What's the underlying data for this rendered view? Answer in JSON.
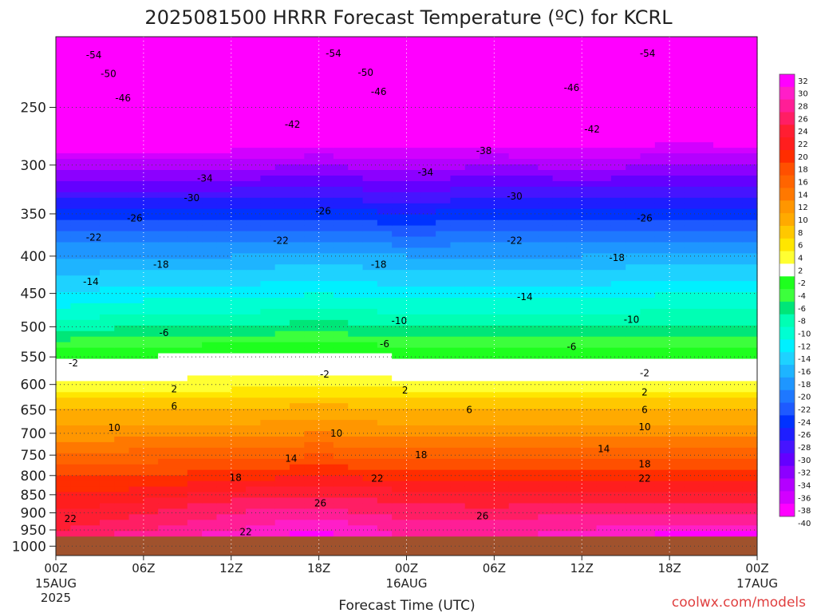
{
  "chart_data": {
    "type": "heatmap",
    "title": "2025081500 HRRR Forecast Temperature (ºC) for KCRL",
    "xlabel": "Forecast Time (UTC)",
    "ylabel": "",
    "credit": "coolwx.com/models",
    "x_ticks": [
      {
        "hours": 0,
        "label": "00Z",
        "sub": "15AUG",
        "sub2": "2025"
      },
      {
        "hours": 6,
        "label": "06Z"
      },
      {
        "hours": 12,
        "label": "12Z"
      },
      {
        "hours": 18,
        "label": "18Z"
      },
      {
        "hours": 24,
        "label": "00Z",
        "sub": "16AUG"
      },
      {
        "hours": 30,
        "label": "06Z"
      },
      {
        "hours": 36,
        "label": "12Z"
      },
      {
        "hours": 42,
        "label": "18Z"
      },
      {
        "hours": 48,
        "label": "00Z",
        "sub": "17AUG"
      }
    ],
    "x_range_hours": [
      0,
      48
    ],
    "y_ticks": [
      250,
      300,
      350,
      400,
      450,
      500,
      550,
      600,
      650,
      700,
      750,
      800,
      850,
      900,
      950,
      1000
    ],
    "y_range_hpa": [
      200,
      1030
    ],
    "y_scale": "log",
    "surface_pressure_hpa": 970,
    "grid": true,
    "colorbar": {
      "labels": [
        32,
        30,
        28,
        26,
        24,
        22,
        20,
        18,
        16,
        14,
        12,
        10,
        8,
        6,
        4,
        2,
        -2,
        -4,
        -6,
        -8,
        -10,
        -12,
        -14,
        -16,
        -18,
        -20,
        -22,
        -24,
        -26,
        -28,
        -30,
        -32,
        -34,
        -36,
        -38,
        -40
      ],
      "colors": [
        "#ff00ff",
        "#ff1ec8",
        "#ff1e96",
        "#ff1e64",
        "#ff1e32",
        "#ff1e1e",
        "#ff2d00",
        "#ff5000",
        "#ff6400",
        "#ff7800",
        "#ff9600",
        "#ffaa00",
        "#ffc800",
        "#ffe600",
        "#ffff32",
        "#ffffff",
        "#1eff1e",
        "#3cff3c",
        "#00e678",
        "#00ffb4",
        "#00ffd2",
        "#00f0ff",
        "#1ed2ff",
        "#1eb4ff",
        "#1e96ff",
        "#1e78ff",
        "#1e5aff",
        "#0032ff",
        "#1e1eff",
        "#4614ff",
        "#6400ff",
        "#8c00ff",
        "#b400ff",
        "#d200ff",
        "#ff00ff"
      ]
    },
    "levels": [
      {
        "p": 200,
        "values": [
          -56,
          -56,
          -56,
          -56,
          -56,
          -56,
          -56,
          -56,
          -56
        ]
      },
      {
        "p": 250,
        "values": [
          -47,
          -47,
          -47,
          -46,
          -47,
          -46,
          -46,
          -45,
          -46
        ]
      },
      {
        "p": 300,
        "values": [
          -35,
          -35,
          -35,
          -34,
          -35,
          -34,
          -35,
          -34,
          -34
        ]
      },
      {
        "p": 350,
        "values": [
          -25,
          -25,
          -25,
          -25,
          -26,
          -25,
          -25,
          -25,
          -25
        ]
      },
      {
        "p": 400,
        "values": [
          -18,
          -18,
          -18,
          -17,
          -18,
          -18,
          -18,
          -17,
          -17
        ]
      },
      {
        "p": 450,
        "values": [
          -14,
          -13,
          -13,
          -12,
          -13,
          -13,
          -13,
          -12,
          -12
        ]
      },
      {
        "p": 500,
        "values": [
          -9,
          -8,
          -8,
          -7,
          -8,
          -8,
          -8,
          -8,
          -8
        ]
      },
      {
        "p": 550,
        "values": [
          -2,
          -2,
          -1,
          -1,
          -2,
          -2,
          -2,
          -2,
          -2
        ]
      },
      {
        "p": 600,
        "values": [
          3,
          3,
          3,
          4,
          3,
          3,
          3,
          3,
          3
        ]
      },
      {
        "p": 650,
        "values": [
          8,
          8,
          8,
          9,
          8,
          8,
          8,
          8,
          8
        ]
      },
      {
        "p": 700,
        "values": [
          11,
          11,
          11,
          12,
          11,
          11,
          11,
          11,
          11
        ]
      },
      {
        "p": 750,
        "values": [
          14,
          15,
          15,
          16,
          15,
          15,
          15,
          15,
          15
        ]
      },
      {
        "p": 800,
        "values": [
          18,
          18,
          19,
          20,
          19,
          19,
          19,
          19,
          19
        ]
      },
      {
        "p": 850,
        "values": [
          20,
          21,
          23,
          24,
          23,
          22,
          23,
          23,
          23
        ]
      },
      {
        "p": 900,
        "values": [
          22,
          24,
          26,
          27,
          25,
          25,
          26,
          26,
          26
        ]
      },
      {
        "p": 950,
        "values": [
          24,
          26,
          28,
          30,
          27,
          27,
          28,
          29,
          29
        ]
      },
      {
        "p": 970,
        "values": [
          25,
          27,
          29,
          31,
          28,
          28,
          29,
          31,
          31
        ]
      }
    ],
    "contour_labels": [
      {
        "text": "-54",
        "hours": 2.6,
        "p": 212
      },
      {
        "text": "-54",
        "hours": 19.0,
        "p": 211
      },
      {
        "text": "-54",
        "hours": 40.5,
        "p": 211
      },
      {
        "text": "-50",
        "hours": 3.6,
        "p": 225
      },
      {
        "text": "-50",
        "hours": 21.2,
        "p": 224
      },
      {
        "text": "-46",
        "hours": 4.6,
        "p": 243
      },
      {
        "text": "-46",
        "hours": 22.1,
        "p": 238
      },
      {
        "text": "-46",
        "hours": 35.3,
        "p": 235
      },
      {
        "text": "-42",
        "hours": 16.2,
        "p": 264
      },
      {
        "text": "-42",
        "hours": 36.7,
        "p": 268
      },
      {
        "text": "-38",
        "hours": 29.3,
        "p": 287
      },
      {
        "text": "-34",
        "hours": 10.2,
        "p": 313
      },
      {
        "text": "-34",
        "hours": 25.3,
        "p": 307
      },
      {
        "text": "-30",
        "hours": 9.3,
        "p": 333
      },
      {
        "text": "-30",
        "hours": 31.4,
        "p": 331
      },
      {
        "text": "-26",
        "hours": 5.4,
        "p": 355
      },
      {
        "text": "-26",
        "hours": 18.3,
        "p": 347
      },
      {
        "text": "-26",
        "hours": 40.3,
        "p": 355
      },
      {
        "text": "-22",
        "hours": 2.6,
        "p": 377
      },
      {
        "text": "-22",
        "hours": 15.4,
        "p": 381
      },
      {
        "text": "-22",
        "hours": 31.4,
        "p": 381
      },
      {
        "text": "-18",
        "hours": 7.2,
        "p": 411
      },
      {
        "text": "-18",
        "hours": 22.1,
        "p": 411
      },
      {
        "text": "-18",
        "hours": 38.4,
        "p": 402
      },
      {
        "text": "-14",
        "hours": 2.4,
        "p": 434
      },
      {
        "text": "-14",
        "hours": 32.1,
        "p": 455
      },
      {
        "text": "-10",
        "hours": 23.5,
        "p": 491
      },
      {
        "text": "-10",
        "hours": 39.4,
        "p": 489
      },
      {
        "text": "-6",
        "hours": 7.4,
        "p": 510
      },
      {
        "text": "-6",
        "hours": 22.5,
        "p": 528
      },
      {
        "text": "-6",
        "hours": 35.3,
        "p": 533
      },
      {
        "text": "-2",
        "hours": 1.2,
        "p": 561
      },
      {
        "text": "-2",
        "hours": 18.4,
        "p": 581
      },
      {
        "text": "-2",
        "hours": 40.3,
        "p": 579
      },
      {
        "text": "2",
        "hours": 8.1,
        "p": 609
      },
      {
        "text": "2",
        "hours": 23.9,
        "p": 611
      },
      {
        "text": "2",
        "hours": 40.3,
        "p": 615
      },
      {
        "text": "6",
        "hours": 8.1,
        "p": 643
      },
      {
        "text": "6",
        "hours": 28.3,
        "p": 650
      },
      {
        "text": "6",
        "hours": 40.3,
        "p": 650
      },
      {
        "text": "10",
        "hours": 4.0,
        "p": 688
      },
      {
        "text": "10",
        "hours": 19.2,
        "p": 700
      },
      {
        "text": "10",
        "hours": 40.3,
        "p": 686
      },
      {
        "text": "14",
        "hours": 16.1,
        "p": 758
      },
      {
        "text": "14",
        "hours": 37.5,
        "p": 736
      },
      {
        "text": "18",
        "hours": 25.0,
        "p": 750
      },
      {
        "text": "18",
        "hours": 12.3,
        "p": 805
      },
      {
        "text": "18",
        "hours": 40.3,
        "p": 772
      },
      {
        "text": "22",
        "hours": 22.0,
        "p": 808
      },
      {
        "text": "22",
        "hours": 40.3,
        "p": 808
      },
      {
        "text": "22",
        "hours": 1.0,
        "p": 917
      },
      {
        "text": "22",
        "hours": 13.0,
        "p": 956
      },
      {
        "text": "26",
        "hours": 18.1,
        "p": 873
      },
      {
        "text": "26",
        "hours": 29.2,
        "p": 909
      }
    ]
  }
}
